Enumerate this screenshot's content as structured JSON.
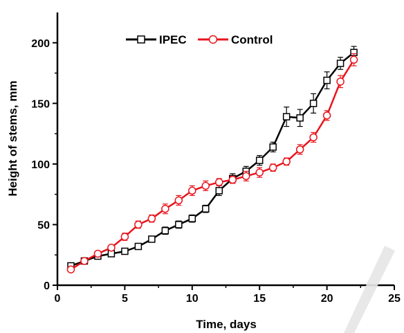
{
  "chart_data": {
    "type": "line",
    "title": "",
    "xlabel": "Time, days",
    "ylabel": "Height of stems, mm",
    "xlim": [
      0,
      25
    ],
    "ylim": [
      0,
      225
    ],
    "xticks": [
      0,
      5,
      10,
      15,
      20,
      25
    ],
    "yticks": [
      0,
      50,
      100,
      150,
      200
    ],
    "xtick_labels": [
      "0",
      "5",
      "10",
      "15",
      "20",
      "25"
    ],
    "ytick_labels": [
      "0",
      "50",
      "100",
      "150",
      "200"
    ],
    "grid": false,
    "legend_position": "top-left",
    "x": [
      1,
      2,
      3,
      4,
      5,
      6,
      7,
      8,
      9,
      10,
      11,
      12,
      13,
      14,
      15,
      16,
      17,
      18,
      19,
      20,
      21,
      22
    ],
    "series": [
      {
        "name": "IPEC",
        "color": "#000000",
        "marker": "square",
        "values": [
          16,
          20,
          24,
          26,
          28,
          32,
          38,
          45,
          50,
          55,
          63,
          78,
          88,
          94,
          103,
          114,
          139,
          138,
          150,
          169,
          183,
          192
        ],
        "errors": [
          2,
          1.5,
          2,
          2,
          2,
          2,
          2.5,
          3,
          3,
          3,
          3,
          4,
          4,
          4,
          4,
          4,
          8,
          7,
          8,
          7,
          5,
          5
        ]
      },
      {
        "name": "Control",
        "color": "#e8141c",
        "marker": "circle",
        "values": [
          13,
          20,
          26,
          31,
          40,
          50,
          55,
          63,
          70,
          78,
          82,
          85,
          87,
          90,
          93,
          97,
          102,
          112,
          122,
          140,
          168,
          186
        ],
        "errors": [
          2,
          1.5,
          2,
          2,
          3,
          3,
          3,
          4,
          4,
          4,
          4,
          3,
          3,
          4,
          4,
          3,
          3,
          4,
          4,
          4,
          5,
          5
        ]
      }
    ]
  }
}
